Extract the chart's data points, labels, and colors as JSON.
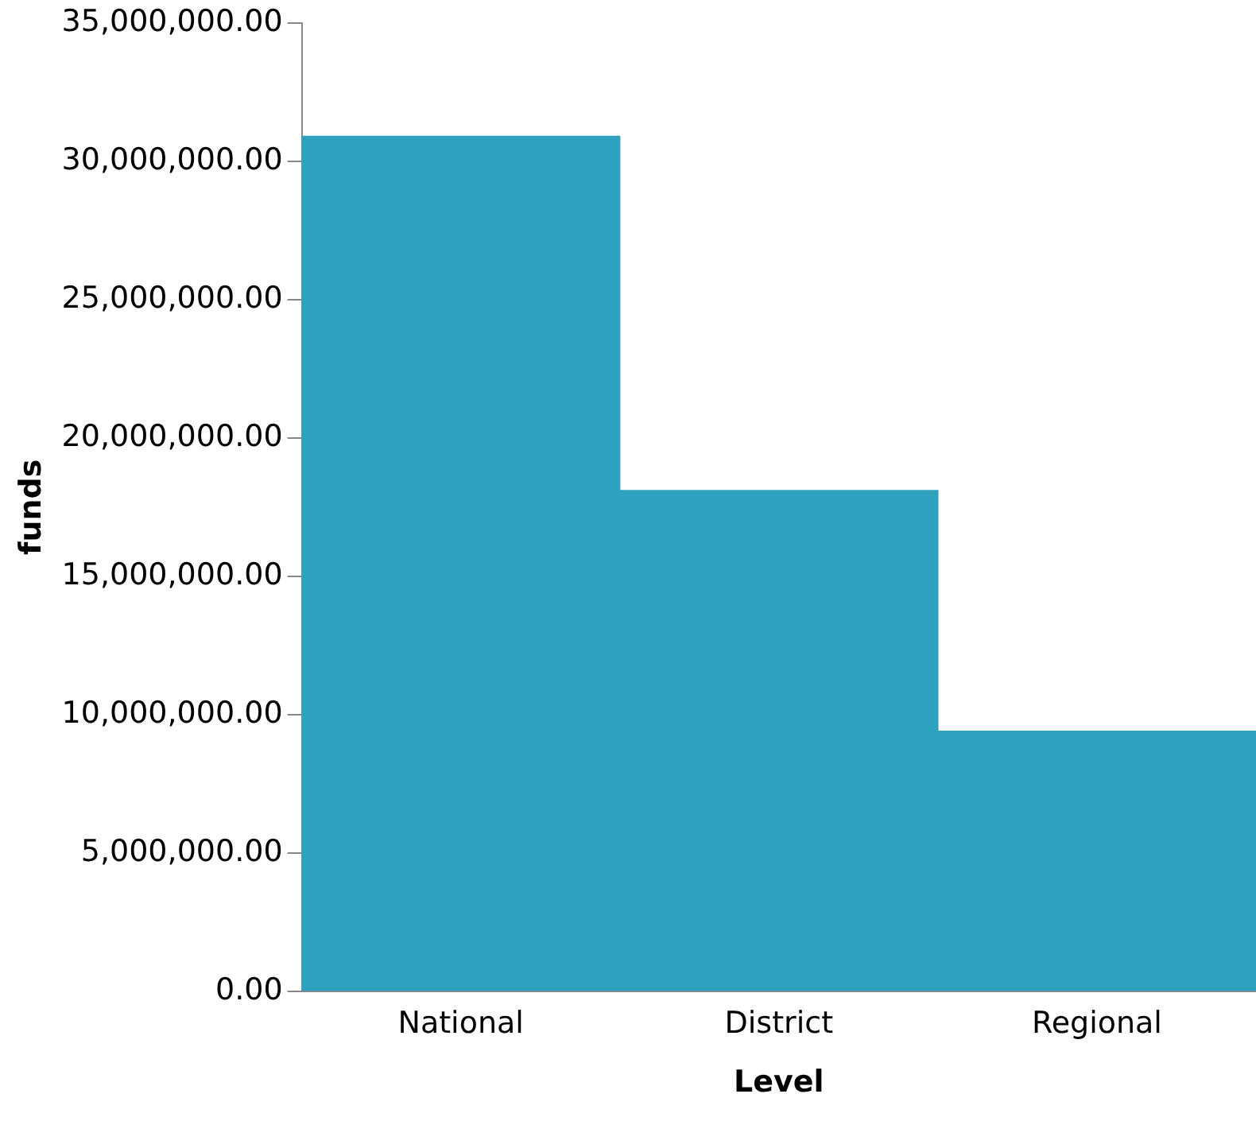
{
  "chart_data": {
    "type": "bar",
    "xlabel": "Level",
    "ylabel": "funds",
    "categories": [
      "National",
      "District",
      "Regional"
    ],
    "values": [
      30900000,
      18100000,
      9400000
    ],
    "color": "#2ea1be",
    "ylim": [
      0,
      35000000
    ],
    "yticks": [
      {
        "value": 0,
        "label": "0.00"
      },
      {
        "value": 5000000,
        "label": "5,000,000.00"
      },
      {
        "value": 10000000,
        "label": "10,000,000.00"
      },
      {
        "value": 15000000,
        "label": "15,000,000.00"
      },
      {
        "value": 20000000,
        "label": "20,000,000.00"
      },
      {
        "value": 25000000,
        "label": "25,000,000.00"
      },
      {
        "value": 30000000,
        "label": "30,000,000.00"
      },
      {
        "value": 35000000,
        "label": "35,000,000.00"
      }
    ],
    "grid": false,
    "legend": false
  }
}
